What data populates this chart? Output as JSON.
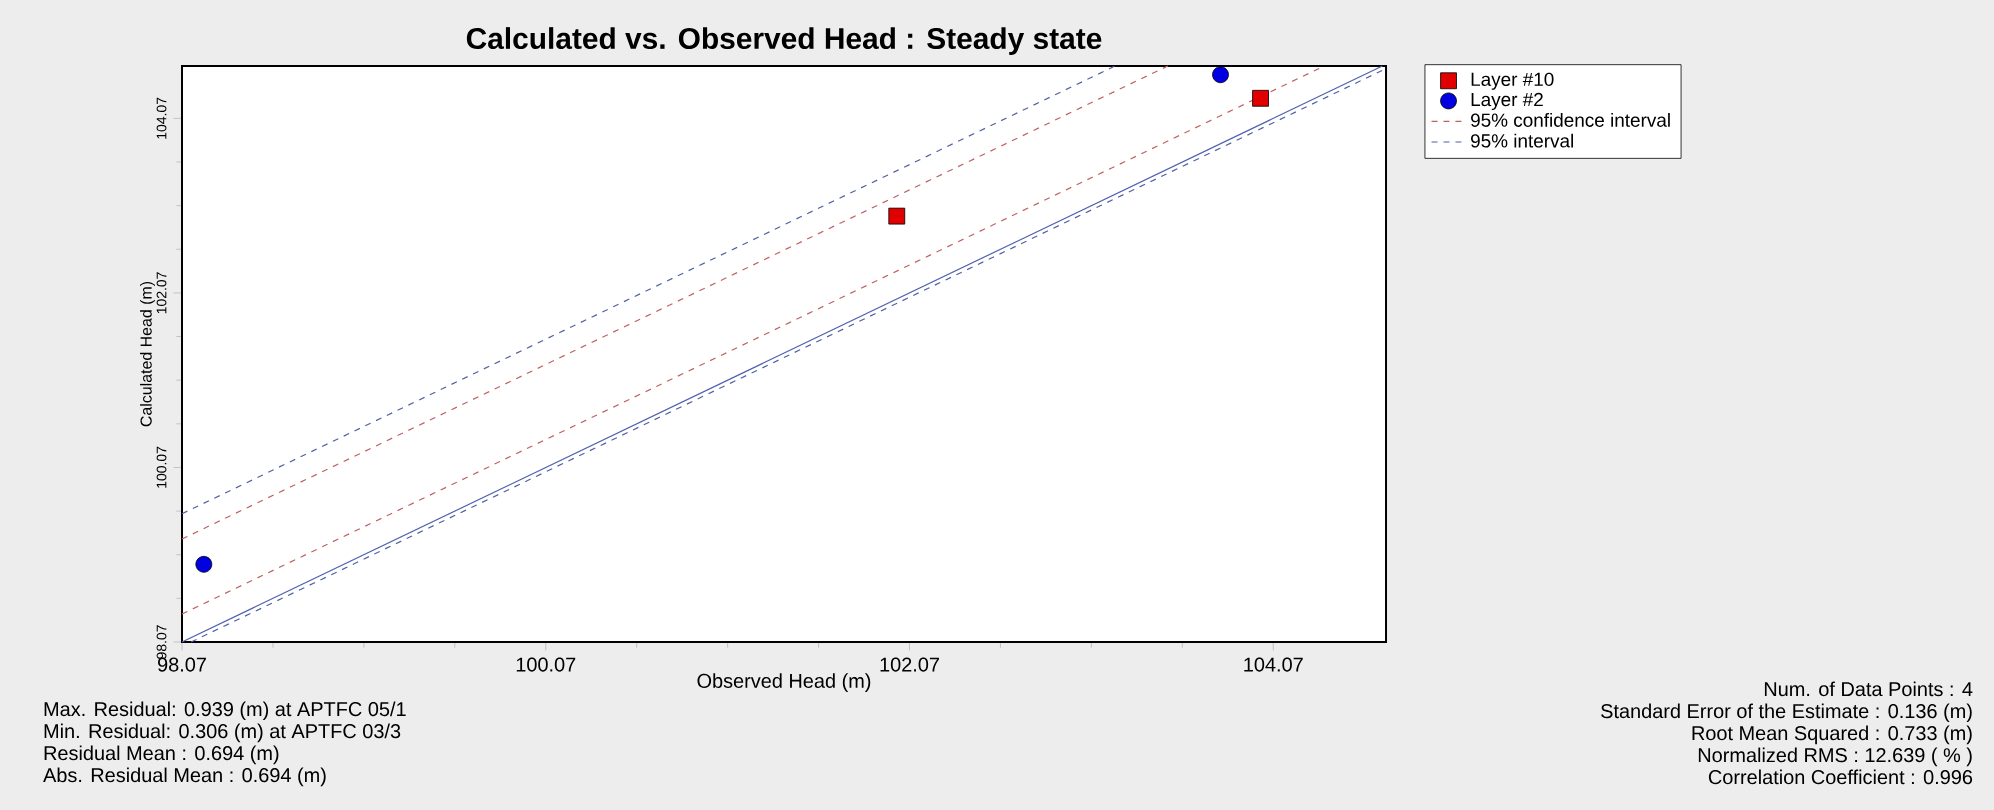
{
  "chart_data": {
    "type": "scatter",
    "title": "Calculated vs. Observed Head : Steady state",
    "xlabel": "Observed Head (m)",
    "ylabel": "Calculated Head (m)",
    "xlim": [
      98.07,
      104.69
    ],
    "ylim": [
      98.07,
      104.67
    ],
    "xticks": [
      98.07,
      100.07,
      102.07,
      104.07
    ],
    "yticks": [
      98.07,
      100.07,
      102.07,
      104.07
    ],
    "grid": false,
    "legend": "right",
    "series": [
      {
        "name": "Layer #10",
        "marker": "square",
        "color": "#e00000",
        "x": [
          102.0,
          104.0
        ],
        "values": [
          102.95,
          104.3
        ]
      },
      {
        "name": "Layer #2",
        "marker": "circle",
        "color": "#0000e0",
        "x": [
          98.19,
          103.78
        ],
        "values": [
          98.96,
          104.57
        ]
      },
      {
        "name": "95% confidence interval",
        "type": "line",
        "line_style": "dashed",
        "color": "#c06060",
        "x": [
          98.07,
          103.49
        ],
        "values": [
          99.25,
          104.67
        ]
      },
      {
        "type": "line",
        "line_style": "dashed",
        "color": "#c06060",
        "x": [
          98.07,
          104.35
        ],
        "values": [
          98.39,
          104.67
        ]
      },
      {
        "name": "95% interval",
        "type": "line",
        "line_style": "dashed",
        "color": "#5060a0",
        "x": [
          98.07,
          103.2
        ],
        "values": [
          99.54,
          104.67
        ]
      },
      {
        "type": "line",
        "line_style": "dashed",
        "color": "#5060a0",
        "x": [
          98.12,
          104.69
        ],
        "values": [
          98.07,
          104.64
        ]
      },
      {
        "type": "line",
        "line_style": "solid",
        "color": "#5060b0",
        "x": [
          98.07,
          104.67
        ],
        "values": [
          98.07,
          104.67
        ]
      }
    ],
    "annotations": [
      "Max. Residual: 0.939 (m) at APTFC 05/1",
      "Min. Residual: 0.306 (m) at APTFC 03/3",
      "Residual Mean : 0.694 (m)",
      "Abs. Residual Mean : 0.694 (m)",
      "Num. of Data Points : 4",
      "Standard Error of the Estimate : 0.136 (m)",
      "Root Mean Squared : 0.733 (m)",
      "Normalized RMS : 12.639 ( % )",
      "Correlation Coefficient : 0.996"
    ]
  }
}
